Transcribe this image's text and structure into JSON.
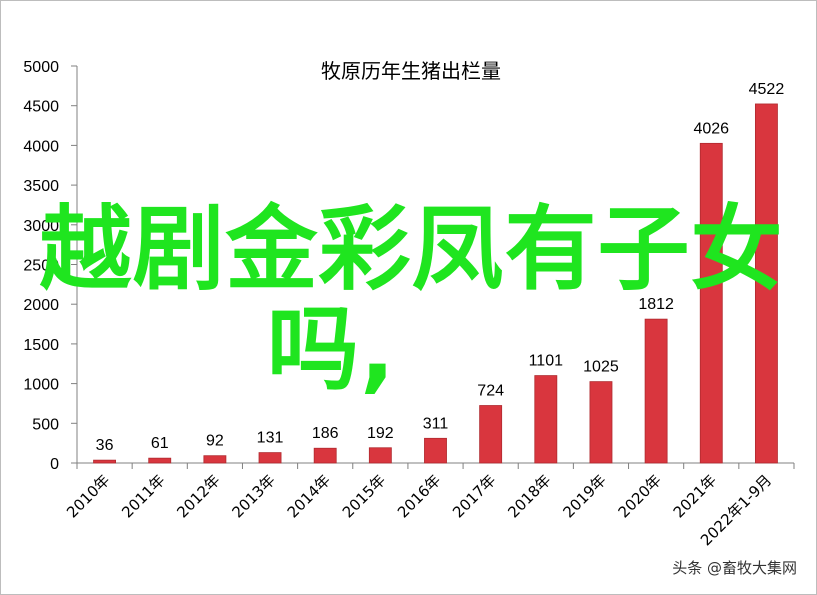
{
  "chart_data": {
    "type": "bar",
    "title": "牧原历年生猪出栏量",
    "categories": [
      "2010年",
      "2011年",
      "2012年",
      "2013年",
      "2014年",
      "2015年",
      "2016年",
      "2017年",
      "2018年",
      "2019年",
      "2020年",
      "2021年",
      "2022年1-9月"
    ],
    "values": [
      36,
      61,
      92,
      131,
      186,
      192,
      311,
      724,
      1101,
      1025,
      1812,
      4026,
      4522
    ],
    "value_labels": [
      "36",
      "61",
      "92",
      "131",
      "186",
      "192",
      "311",
      "724",
      "1101",
      "1025",
      "1812",
      "4026",
      "4522"
    ],
    "ylim": [
      0,
      5000
    ],
    "yticks": [
      "0",
      "500",
      "1000",
      "1500",
      "2000",
      "2500",
      "3000",
      "3500",
      "4000",
      "4500",
      "5000"
    ],
    "xlabel": "",
    "ylabel": "",
    "grid": false,
    "bar_color": "#d9363e",
    "bar_edge_color": "#b02a2f"
  },
  "overlay": {
    "line1": "越剧金彩凤有子女",
    "line2": "吗,",
    "color": "#1fe51f"
  },
  "watermark": "头条 @畜牧大集网"
}
